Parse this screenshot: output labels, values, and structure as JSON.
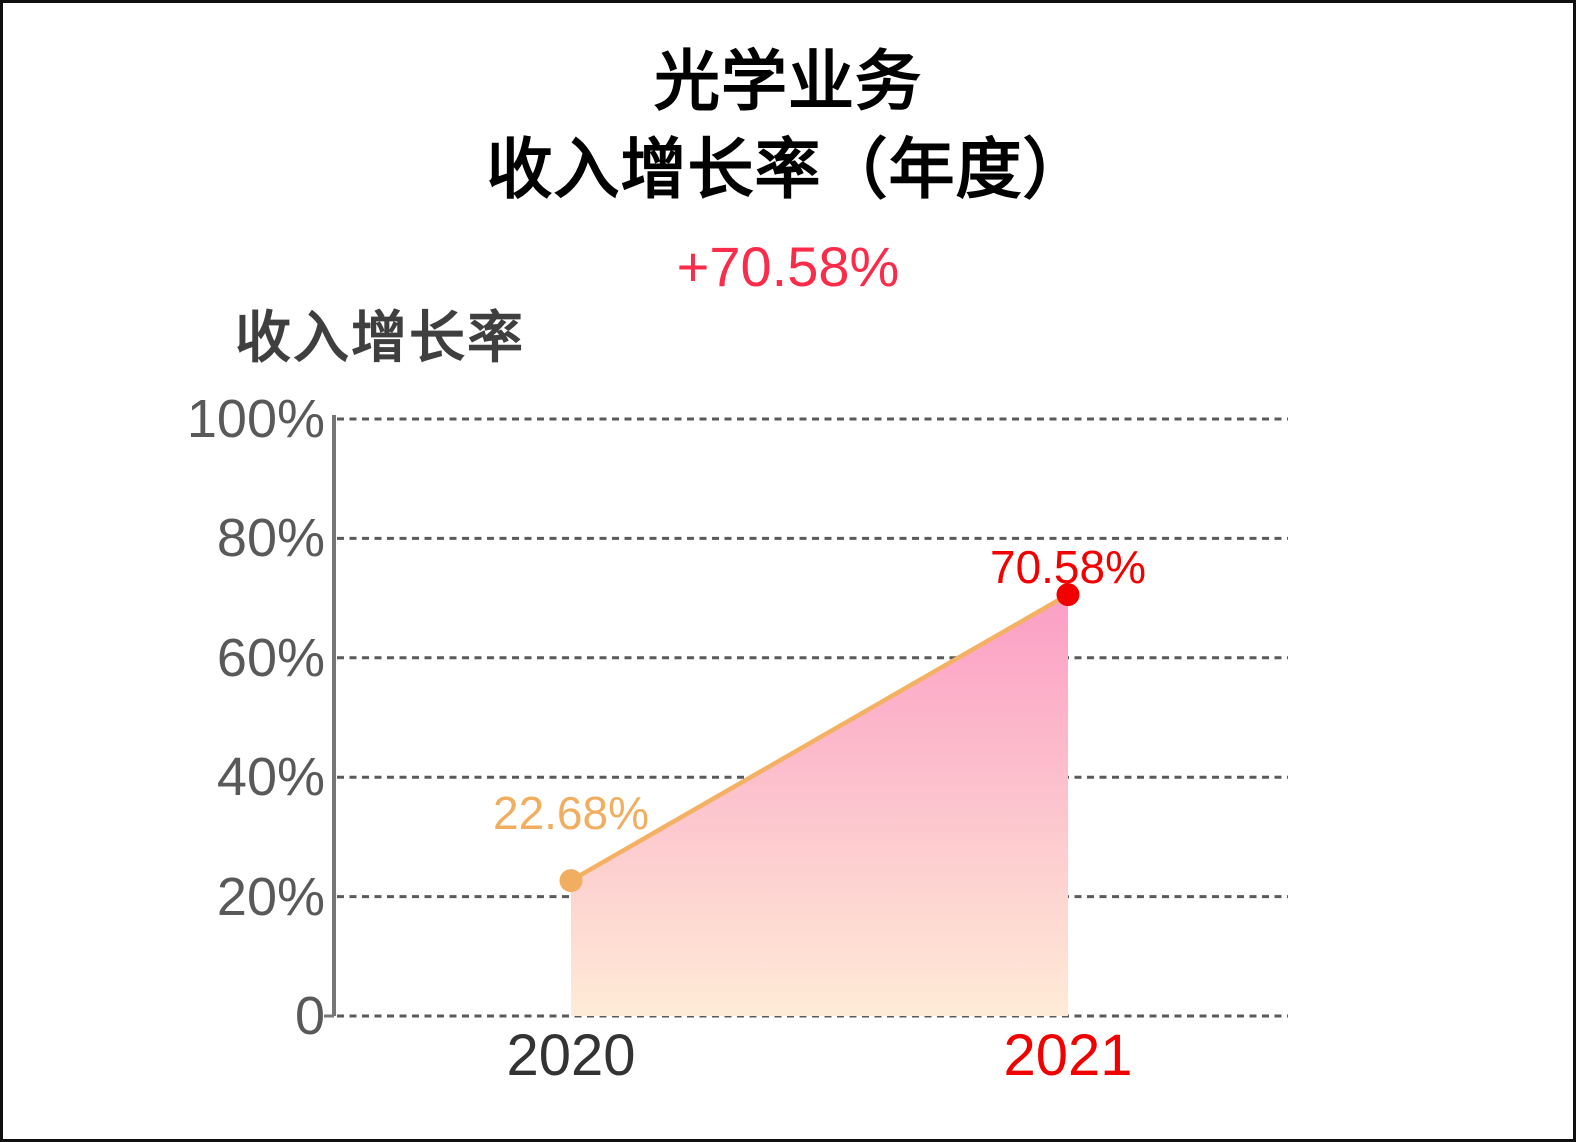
{
  "title": {
    "line1": "光学业务",
    "line2": "收入增长率（年度）"
  },
  "subtitle": "+70.58%",
  "series_label": "收入增长率",
  "colors": {
    "title": "#000000",
    "subtitle": "#FB2B4A",
    "series_label": "#3F3F3F",
    "tick_label": "#595959",
    "axis_line": "#777777",
    "grid_line": "#5A5A5A",
    "line": "#F4B164",
    "area_gradient_top": "#FB9EC5",
    "area_gradient_bottom": "#FEEBD6"
  },
  "chart_data": {
    "type": "area",
    "title": "光学业务 收入增长率（年度）",
    "change_annotation": "+70.58%",
    "legend": "收入增长率",
    "legend_position": "top-left",
    "categories": [
      "2020",
      "2021"
    ],
    "series": [
      {
        "name": "收入增长率",
        "values": [
          22.68,
          70.58
        ]
      }
    ],
    "point_labels": [
      "22.68%",
      "70.58%"
    ],
    "point_colors": [
      "#F2AE60",
      "#F20000"
    ],
    "category_label_colors": [
      "#333333",
      "#F20000"
    ],
    "xlabel": "",
    "ylabel": "收入增长率",
    "ylim": [
      0,
      100
    ],
    "yticks": [
      {
        "value": 0,
        "label": "0"
      },
      {
        "value": 20,
        "label": "20%"
      },
      {
        "value": 40,
        "label": "40%"
      },
      {
        "value": 60,
        "label": "60%"
      },
      {
        "value": 80,
        "label": "80%"
      },
      {
        "value": 100,
        "label": "100%"
      }
    ],
    "grid": "horizontal-dashed"
  }
}
